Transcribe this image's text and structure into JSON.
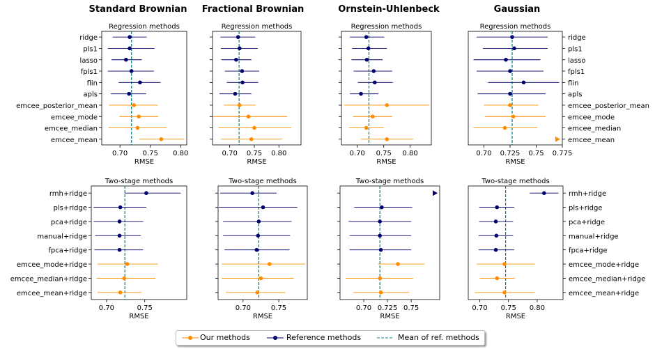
{
  "column_titles": [
    "Standard Brownian",
    "Fractional Brownian",
    "Ornstein-Uhlenbeck",
    "Gaussian"
  ],
  "legend": {
    "ours": "Our methods",
    "reference": "Reference methods",
    "mean": "Mean of ref. methods"
  },
  "colors": {
    "ours": "#ff8c00",
    "reference": "#00006e",
    "mean": "#008080"
  },
  "chart_data": [
    {
      "type": "scatter",
      "column": "Standard Brownian",
      "row": "Regression methods",
      "title": "Regression methods",
      "xlabel": "RMSE",
      "ylabel": "",
      "xlim": [
        0.67,
        0.81
      ],
      "xticks": [
        0.7,
        0.75,
        0.8
      ],
      "categories": [
        "ridge",
        "pls1",
        "lasso",
        "fpls1",
        "flin",
        "apls",
        "emcee_posterior_mean",
        "emcee_mode",
        "emcee_median",
        "emcee_mean"
      ],
      "points": [
        {
          "category": "ridge",
          "x": 0.716,
          "lo": 0.688,
          "hi": 0.744,
          "group": "ref"
        },
        {
          "category": "pls1",
          "x": 0.716,
          "lo": 0.68,
          "hi": 0.757,
          "group": "ref"
        },
        {
          "category": "lasso",
          "x": 0.71,
          "lo": 0.686,
          "hi": 0.736,
          "group": "ref"
        },
        {
          "category": "fpls1",
          "x": 0.719,
          "lo": 0.68,
          "hi": 0.756,
          "group": "ref"
        },
        {
          "category": "flin",
          "x": 0.733,
          "lo": 0.698,
          "hi": 0.767,
          "group": "ref"
        },
        {
          "category": "apls",
          "x": 0.715,
          "lo": 0.685,
          "hi": 0.743,
          "group": "ref"
        },
        {
          "category": "emcee_posterior_mean",
          "x": 0.723,
          "lo": 0.682,
          "hi": 0.762,
          "group": "ours"
        },
        {
          "category": "emcee_mode",
          "x": 0.731,
          "lo": 0.699,
          "hi": 0.763,
          "group": "ours"
        },
        {
          "category": "emcee_median",
          "x": 0.729,
          "lo": 0.681,
          "hi": 0.777,
          "group": "ours"
        },
        {
          "category": "emcee_mean",
          "x": 0.768,
          "lo": 0.732,
          "hi": 0.806,
          "group": "ours"
        }
      ],
      "mean_line": 0.719,
      "ylabel_side": "left"
    },
    {
      "type": "scatter",
      "column": "Fractional Brownian",
      "row": "Regression methods",
      "title": "Regression methods",
      "xlabel": "RMSE",
      "xlim": [
        0.665,
        0.845
      ],
      "xticks": [
        0.7,
        0.75,
        0.8
      ],
      "categories": [],
      "points": [
        {
          "category": "ridge",
          "x": 0.717,
          "lo": 0.681,
          "hi": 0.752,
          "group": "ref"
        },
        {
          "category": "pls1",
          "x": 0.72,
          "lo": 0.682,
          "hi": 0.757,
          "group": "ref"
        },
        {
          "category": "lasso",
          "x": 0.713,
          "lo": 0.683,
          "hi": 0.744,
          "group": "ref"
        },
        {
          "category": "fpls1",
          "x": 0.725,
          "lo": 0.69,
          "hi": 0.76,
          "group": "ref"
        },
        {
          "category": "flin",
          "x": 0.726,
          "lo": 0.694,
          "hi": 0.758,
          "group": "ref"
        },
        {
          "category": "apls",
          "x": 0.711,
          "lo": 0.679,
          "hi": 0.744,
          "group": "ref"
        },
        {
          "category": "emcee_posterior_mean",
          "x": 0.72,
          "lo": 0.688,
          "hi": 0.752,
          "group": "ours"
        },
        {
          "category": "emcee_mode",
          "x": 0.738,
          "lo": 0.665,
          "hi": 0.817,
          "group": "ours"
        },
        {
          "category": "emcee_median",
          "x": 0.75,
          "lo": 0.677,
          "hi": 0.825,
          "group": "ours"
        },
        {
          "category": "emcee_mean",
          "x": 0.744,
          "lo": 0.682,
          "hi": 0.807,
          "group": "ours"
        }
      ],
      "mean_line": 0.719,
      "ylabel_side": "none"
    },
    {
      "type": "scatter",
      "column": "Ornstein-Uhlenbeck",
      "row": "Regression methods",
      "title": "Regression methods",
      "xlabel": "RMSE",
      "xlim": [
        0.67,
        0.84
      ],
      "xticks": [
        0.7,
        0.75,
        0.8
      ],
      "categories": [],
      "points": [
        {
          "category": "ridge",
          "x": 0.717,
          "lo": 0.686,
          "hi": 0.751,
          "group": "ref"
        },
        {
          "category": "pls1",
          "x": 0.721,
          "lo": 0.69,
          "hi": 0.756,
          "group": "ref"
        },
        {
          "category": "lasso",
          "x": 0.718,
          "lo": 0.689,
          "hi": 0.748,
          "group": "ref"
        },
        {
          "category": "fpls1",
          "x": 0.731,
          "lo": 0.693,
          "hi": 0.766,
          "group": "ref"
        },
        {
          "category": "flin",
          "x": 0.733,
          "lo": 0.701,
          "hi": 0.767,
          "group": "ref"
        },
        {
          "category": "apls",
          "x": 0.707,
          "lo": 0.686,
          "hi": 0.74,
          "group": "ref"
        },
        {
          "category": "emcee_posterior_mean",
          "x": 0.756,
          "lo": 0.675,
          "hi": 0.836,
          "group": "ours"
        },
        {
          "category": "emcee_mode",
          "x": 0.729,
          "lo": 0.692,
          "hi": 0.766,
          "group": "ours"
        },
        {
          "category": "emcee_median",
          "x": 0.717,
          "lo": 0.684,
          "hi": 0.75,
          "group": "ours"
        },
        {
          "category": "emcee_mean",
          "x": 0.756,
          "lo": 0.707,
          "hi": 0.806,
          "group": "ours"
        }
      ],
      "mean_line": 0.722,
      "ylabel_side": "none"
    },
    {
      "type": "scatter",
      "column": "Gaussian",
      "row": "Regression methods",
      "title": "Regression methods",
      "xlabel": "RMSE",
      "xlim": [
        0.685,
        0.775
      ],
      "xticks": [
        0.7,
        0.725,
        0.75,
        0.775
      ],
      "categories": [
        "ridge",
        "pls1",
        "lasso",
        "fpls1",
        "flin",
        "apls",
        "emcee_posterior_mean",
        "emcee_mode",
        "emcee_median",
        "emcee_mean"
      ],
      "points": [
        {
          "category": "ridge",
          "x": 0.727,
          "lo": 0.693,
          "hi": 0.761,
          "group": "ref"
        },
        {
          "category": "pls1",
          "x": 0.729,
          "lo": 0.699,
          "hi": 0.761,
          "group": "ref"
        },
        {
          "category": "lasso",
          "x": 0.721,
          "lo": 0.69,
          "hi": 0.754,
          "group": "ref"
        },
        {
          "category": "fpls1",
          "x": 0.725,
          "lo": 0.693,
          "hi": 0.757,
          "group": "ref"
        },
        {
          "category": "flin",
          "x": 0.738,
          "lo": 0.704,
          "hi": 0.772,
          "group": "ref"
        },
        {
          "category": "apls",
          "x": 0.725,
          "lo": 0.694,
          "hi": 0.759,
          "group": "ref"
        },
        {
          "category": "emcee_posterior_mean",
          "x": 0.725,
          "lo": 0.7,
          "hi": 0.752,
          "group": "ours"
        },
        {
          "category": "emcee_mode",
          "x": 0.728,
          "lo": 0.701,
          "hi": 0.759,
          "group": "ours"
        },
        {
          "category": "emcee_median",
          "x": 0.72,
          "lo": 0.69,
          "hi": 0.751,
          "group": "ours"
        },
        {
          "category": "emcee_mean",
          "x": 0.8,
          "group": "ours",
          "offscale": true
        }
      ],
      "mean_line": 0.727,
      "ylabel_side": "right"
    },
    {
      "type": "scatter",
      "column": "Standard Brownian",
      "row": "Two-stage methods",
      "title": "Two-stage methods",
      "xlabel": "RMSE",
      "xlim": [
        0.68,
        0.805
      ],
      "xticks": [
        0.7,
        0.75
      ],
      "categories": [
        "rmh+ridge",
        "pls+ridge",
        "pca+ridge",
        "manual+ridge",
        "fpca+ridge",
        "emcee_mode+ridge",
        "emcee_median+ridge",
        "emcee_mean+ridge"
      ],
      "points": [
        {
          "category": "rmh+ridge",
          "x": 0.752,
          "lo": 0.724,
          "hi": 0.797,
          "group": "ref"
        },
        {
          "category": "pls+ridge",
          "x": 0.718,
          "lo": 0.683,
          "hi": 0.752,
          "group": "ref"
        },
        {
          "category": "pca+ridge",
          "x": 0.717,
          "lo": 0.683,
          "hi": 0.748,
          "group": "ref"
        },
        {
          "category": "manual+ridge",
          "x": 0.717,
          "lo": 0.685,
          "hi": 0.745,
          "group": "ref"
        },
        {
          "category": "fpca+ridge",
          "x": 0.717,
          "lo": 0.684,
          "hi": 0.748,
          "group": "ref"
        },
        {
          "category": "emcee_mode+ridge",
          "x": 0.727,
          "lo": 0.688,
          "hi": 0.767,
          "group": "ours"
        },
        {
          "category": "emcee_median+ridge",
          "x": 0.723,
          "lo": 0.687,
          "hi": 0.764,
          "group": "ours"
        },
        {
          "category": "emcee_mean+ridge",
          "x": 0.718,
          "lo": 0.688,
          "hi": 0.746,
          "group": "ours"
        }
      ],
      "mean_line": 0.724,
      "ylabel_side": "left"
    },
    {
      "type": "scatter",
      "column": "Fractional Brownian",
      "row": "Two-stage methods",
      "title": "Two-stage methods",
      "xlabel": "RMSE",
      "xlim": [
        0.665,
        0.79
      ],
      "xticks": [
        0.7,
        0.75
      ],
      "categories": [],
      "points": [
        {
          "category": "rmh+ridge",
          "x": 0.713,
          "lo": 0.668,
          "hi": 0.747,
          "group": "ref"
        },
        {
          "category": "pls+ridge",
          "x": 0.728,
          "lo": 0.666,
          "hi": 0.776,
          "group": "ref"
        },
        {
          "category": "pca+ridge",
          "x": 0.722,
          "lo": 0.672,
          "hi": 0.768,
          "group": "ref"
        },
        {
          "category": "manual+ridge",
          "x": 0.721,
          "lo": 0.672,
          "hi": 0.766,
          "group": "ref"
        },
        {
          "category": "fpca+ridge",
          "x": 0.719,
          "lo": 0.674,
          "hi": 0.765,
          "group": "ref"
        },
        {
          "category": "emcee_mode+ridge",
          "x": 0.737,
          "lo": 0.67,
          "hi": 0.787,
          "group": "ours"
        },
        {
          "category": "emcee_median+ridge",
          "x": 0.725,
          "lo": 0.67,
          "hi": 0.771,
          "group": "ours"
        },
        {
          "category": "emcee_mean+ridge",
          "x": 0.72,
          "lo": 0.676,
          "hi": 0.759,
          "group": "ours"
        }
      ],
      "mean_line": 0.722,
      "ylabel_side": "none"
    },
    {
      "type": "scatter",
      "column": "Ornstein-Uhlenbeck",
      "row": "Two-stage methods",
      "title": "Two-stage methods",
      "xlabel": "RMSE",
      "xlim": [
        0.675,
        0.78
      ],
      "xticks": [
        0.7,
        0.725,
        0.75
      ],
      "categories": [],
      "points": [
        {
          "category": "rmh+ridge",
          "x": 0.79,
          "group": "ref",
          "offscale": true
        },
        {
          "category": "pls+ridge",
          "x": 0.719,
          "lo": 0.69,
          "hi": 0.751,
          "group": "ref"
        },
        {
          "category": "pca+ridge",
          "x": 0.717,
          "lo": 0.684,
          "hi": 0.75,
          "group": "ref"
        },
        {
          "category": "manual+ridge",
          "x": 0.717,
          "lo": 0.685,
          "hi": 0.75,
          "group": "ref"
        },
        {
          "category": "fpca+ridge",
          "x": 0.718,
          "lo": 0.685,
          "hi": 0.75,
          "group": "ref"
        },
        {
          "category": "emcee_mode+ridge",
          "x": 0.736,
          "lo": 0.715,
          "hi": 0.764,
          "group": "ours"
        },
        {
          "category": "emcee_median+ridge",
          "x": 0.717,
          "lo": 0.681,
          "hi": 0.752,
          "group": "ours"
        },
        {
          "category": "emcee_mean+ridge",
          "x": 0.718,
          "lo": 0.689,
          "hi": 0.748,
          "group": "ours"
        }
      ],
      "mean_line": 0.717,
      "ylabel_side": "none"
    },
    {
      "type": "scatter",
      "column": "Gaussian",
      "row": "Two-stage methods",
      "title": "Two-stage methods",
      "xlabel": "RMSE",
      "xlim": [
        0.68,
        0.845
      ],
      "xticks": [
        0.7,
        0.75,
        0.8
      ],
      "categories": [
        "rmh+ridge",
        "pls+ridge",
        "pca+ridge",
        "manual+ridge",
        "fpca+ridge",
        "emcee_mode+ridge",
        "emcee_median+ridge",
        "emcee_mean+ridge"
      ],
      "points": [
        {
          "category": "rmh+ridge",
          "x": 0.812,
          "lo": 0.787,
          "hi": 0.837,
          "group": "ref"
        },
        {
          "category": "pls+ridge",
          "x": 0.73,
          "lo": 0.699,
          "hi": 0.76,
          "group": "ref"
        },
        {
          "category": "pca+ridge",
          "x": 0.728,
          "lo": 0.699,
          "hi": 0.758,
          "group": "ref"
        },
        {
          "category": "manual+ridge",
          "x": 0.729,
          "lo": 0.698,
          "hi": 0.758,
          "group": "ref"
        },
        {
          "category": "fpca+ridge",
          "x": 0.728,
          "lo": 0.698,
          "hi": 0.76,
          "group": "ref"
        },
        {
          "category": "emcee_mode+ridge",
          "x": 0.743,
          "lo": 0.695,
          "hi": 0.796,
          "group": "ours"
        },
        {
          "category": "emcee_median+ridge",
          "x": 0.73,
          "lo": 0.7,
          "hi": 0.761,
          "group": "ours"
        },
        {
          "category": "emcee_mean+ridge",
          "x": 0.743,
          "lo": 0.692,
          "hi": 0.796,
          "group": "ours"
        }
      ],
      "mean_line": 0.745,
      "ylabel_side": "right"
    }
  ]
}
